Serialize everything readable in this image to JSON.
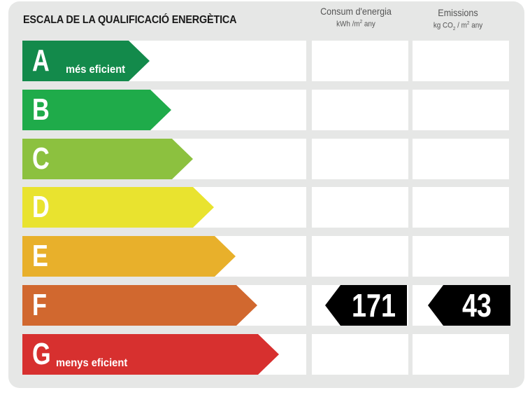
{
  "title": "ESCALA DE LA QUALIFICACIÓ ENERGÈTICA",
  "columns": {
    "energy": {
      "label": "Consum d'energia",
      "unit_a": "kWh /m",
      "unit_sup": "2",
      "unit_b": " any"
    },
    "emissions": {
      "label": "Emissions",
      "unit_a": "kg CO",
      "unit_sub": "2",
      "unit_mid": " / m",
      "unit_sup": "2",
      "unit_b": " any"
    }
  },
  "ratings": [
    {
      "letter": "A",
      "sublabel": "més eficient",
      "color": "#138a4b"
    },
    {
      "letter": "B",
      "sublabel": "",
      "color": "#1fab4a"
    },
    {
      "letter": "C",
      "sublabel": "",
      "color": "#8cc13f"
    },
    {
      "letter": "D",
      "sublabel": "",
      "color": "#e9e32f"
    },
    {
      "letter": "E",
      "sublabel": "",
      "color": "#e8b02b"
    },
    {
      "letter": "F",
      "sublabel": "",
      "color": "#d1682f"
    },
    {
      "letter": "G",
      "sublabel": "menys eficient",
      "color": "#d7302f"
    }
  ],
  "result": {
    "rating": "F",
    "energy_value": "171",
    "emissions_value": "43",
    "marker_color": "#000000"
  }
}
